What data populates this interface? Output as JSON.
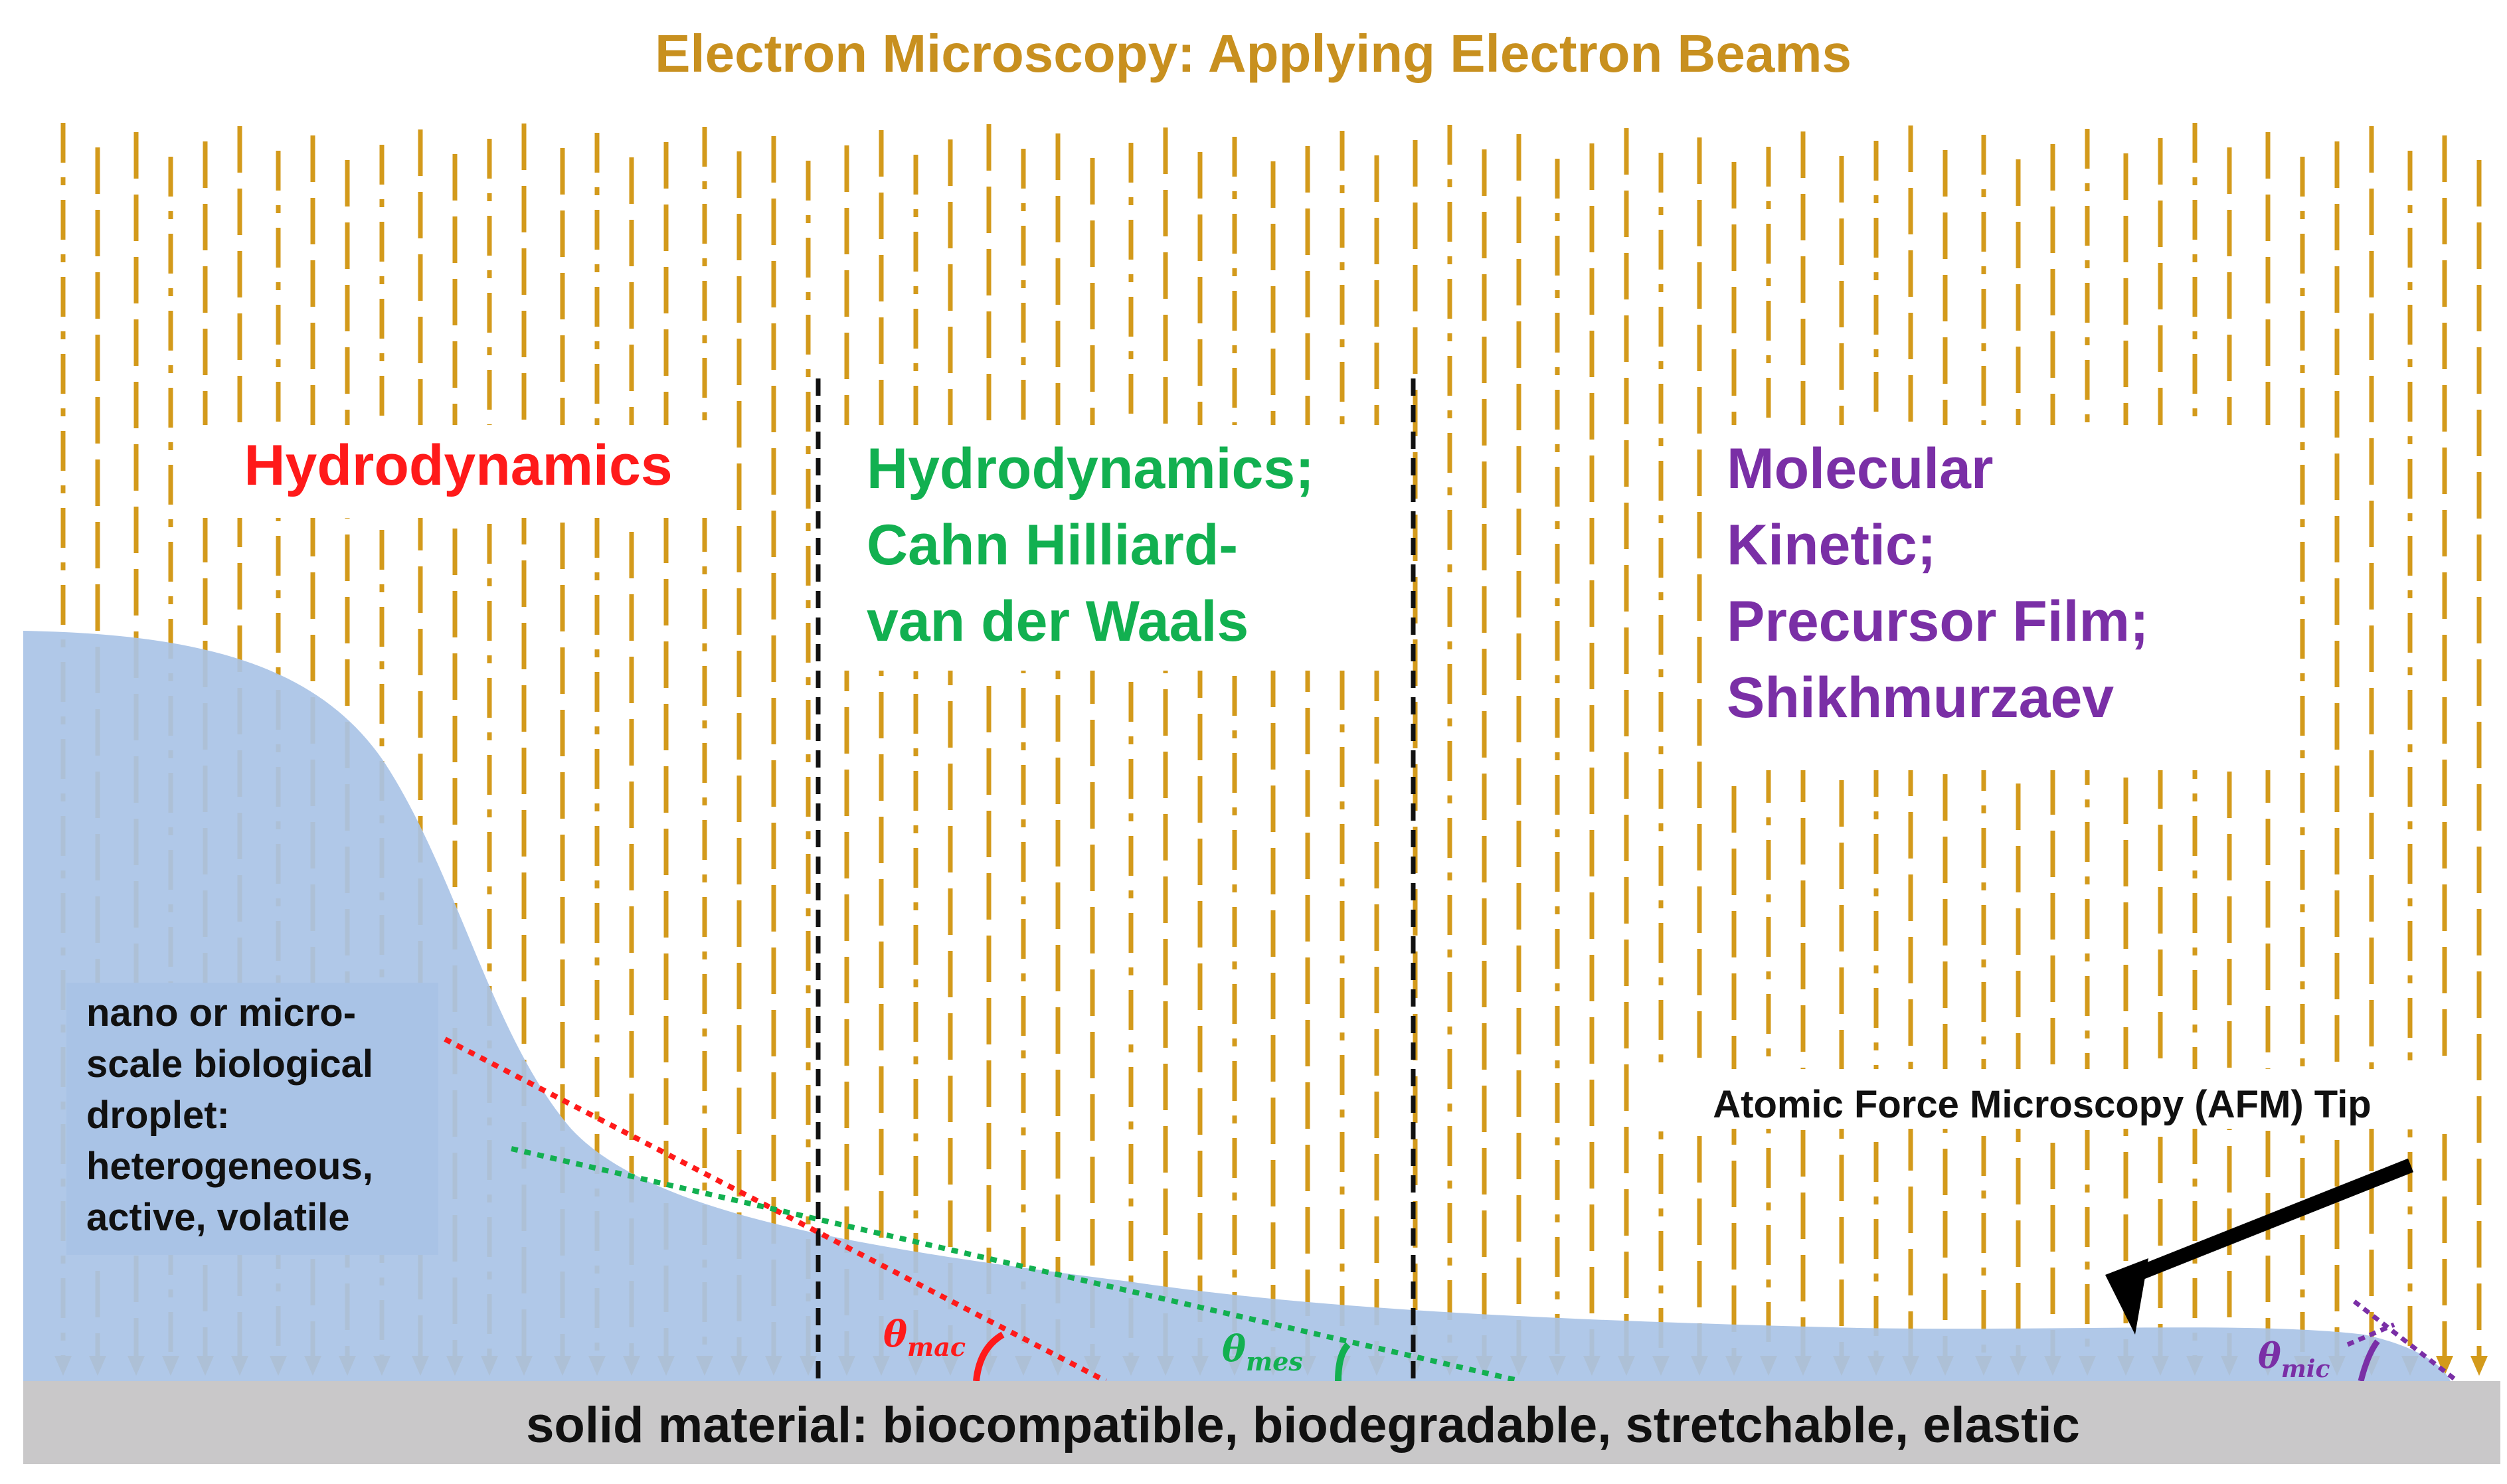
{
  "title": "Electron Microscopy: Applying Electron Beams",
  "regions": {
    "hydro": "Hydrodynamics",
    "cahn": [
      "Hydrodynamics;",
      "Cahn Hilliard-",
      "van der Waals"
    ],
    "molecular": [
      "Molecular",
      "Kinetic;",
      "Precursor Film;",
      "Shikhmurzaev"
    ]
  },
  "droplet_label": [
    "nano or micro-",
    "scale biological",
    "droplet:",
    "heterogeneous,",
    "active, volatile"
  ],
  "afm_label": "Atomic Force Microscopy (AFM) Tip",
  "substrate_label": "solid material: biocompatible, biodegradable, stretchable, elastic",
  "angles": {
    "mac": {
      "symbol": "θ",
      "sub": "mac"
    },
    "mes": {
      "symbol": "θ",
      "sub": "mes"
    },
    "mic": {
      "symbol": "θ",
      "sub": "mic"
    }
  },
  "colors": {
    "beam": "#d39a1b",
    "title": "#c8901f",
    "hydro": "#ff1a1a",
    "cahn": "#12b050",
    "molecular": "#7a2fa6",
    "droplet": "#a9c3e6",
    "substrate": "#c9c8c9",
    "divider": "#111111"
  }
}
